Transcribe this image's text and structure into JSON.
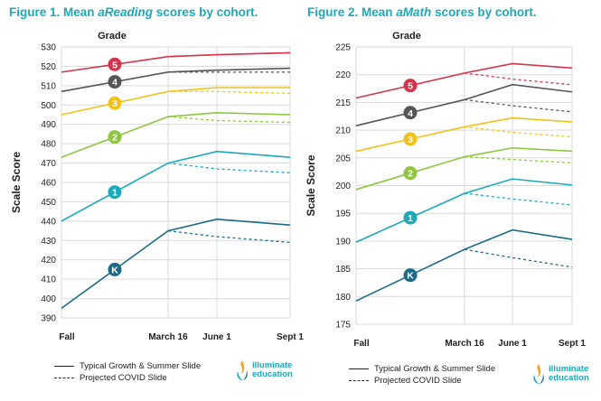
{
  "titles": {
    "fig1_prefix": "Figure 1. Mean ",
    "fig1_em": "aReading",
    "fig1_suffix": " scores by cohort.",
    "fig2_prefix": "Figure 2. Mean ",
    "fig2_em": "aMath",
    "fig2_suffix": " scores by cohort."
  },
  "legend": {
    "solid": "Typical Growth & Summer Slide",
    "dashed": "Projected COVID Slide"
  },
  "logo": {
    "line1": "illuminate",
    "line2": "education"
  },
  "colors": {
    "5": "#d4344c",
    "4": "#555555",
    "3": "#f2c21b",
    "2": "#8dc63f",
    "1": "#1ba9bb",
    "K": "#1b6a86",
    "title": "#1ba9bb"
  },
  "chart_data": [
    {
      "type": "line",
      "title": "Figure 1. Mean aReading scores by cohort.",
      "grade_header": "Grade",
      "ylabel": "Scale Score",
      "x": [
        "Fall",
        "March 16",
        "June 1",
        "Sept 1"
      ],
      "yticks": [
        390,
        400,
        410,
        420,
        430,
        440,
        450,
        460,
        470,
        480,
        490,
        500,
        510,
        520,
        530
      ],
      "ylim": [
        390,
        530
      ],
      "grid": true,
      "series": [
        {
          "name": "5",
          "values": [
            517,
            525,
            526,
            527
          ],
          "covid": [
            525,
            526,
            527
          ]
        },
        {
          "name": "4",
          "values": [
            507,
            517,
            518,
            519
          ],
          "covid": [
            517,
            517,
            517
          ]
        },
        {
          "name": "3",
          "values": [
            495,
            507,
            509,
            509
          ],
          "covid": [
            507,
            507,
            506
          ]
        },
        {
          "name": "2",
          "values": [
            473,
            494,
            496,
            495
          ],
          "covid": [
            494,
            492,
            491
          ]
        },
        {
          "name": "1",
          "values": [
            440,
            470,
            476,
            473
          ],
          "covid": [
            470,
            467,
            465
          ]
        },
        {
          "name": "K",
          "values": [
            395,
            435,
            441,
            438
          ],
          "covid": [
            435,
            432,
            429
          ]
        }
      ]
    },
    {
      "type": "line",
      "title": "Figure 2. Mean aMath scores by cohort.",
      "grade_header": "Grade",
      "ylabel": "Scale Score",
      "x": [
        "Fall",
        "March 16",
        "June 1",
        "Sept 1"
      ],
      "yticks": [
        175,
        180,
        185,
        190,
        195,
        200,
        205,
        210,
        215,
        220,
        225
      ],
      "ylim": [
        175,
        225
      ],
      "grid": true,
      "series": [
        {
          "name": "5",
          "values": [
            215.8,
            220.3,
            222.0,
            221.2
          ],
          "covid": [
            220.3,
            219.2,
            218.2
          ]
        },
        {
          "name": "4",
          "values": [
            210.8,
            215.5,
            218.2,
            216.9
          ],
          "covid": [
            215.5,
            214.4,
            213.3
          ]
        },
        {
          "name": "3",
          "values": [
            206.2,
            210.6,
            212.2,
            211.5
          ],
          "covid": [
            210.6,
            209.6,
            208.8
          ]
        },
        {
          "name": "2",
          "values": [
            199.3,
            205.2,
            206.8,
            206.2
          ],
          "covid": [
            205.2,
            204.7,
            204.1
          ]
        },
        {
          "name": "1",
          "values": [
            189.8,
            198.6,
            201.2,
            200.1
          ],
          "covid": [
            198.6,
            197.6,
            196.5
          ]
        },
        {
          "name": "K",
          "values": [
            179.2,
            188.5,
            192.0,
            190.3
          ],
          "covid": [
            188.5,
            187.0,
            185.3
          ]
        }
      ]
    }
  ]
}
